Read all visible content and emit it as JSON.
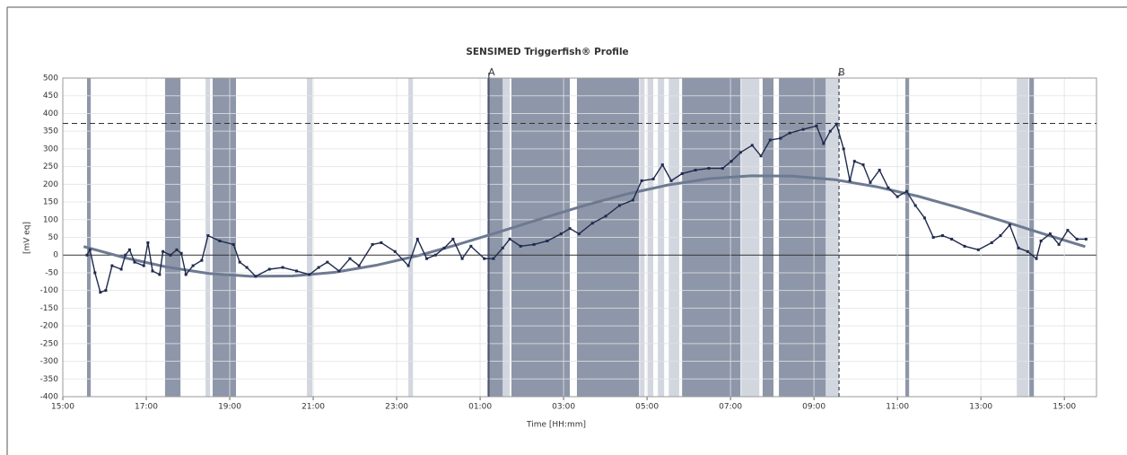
{
  "chart_data": {
    "type": "line",
    "title": "SENSIMED Triggerfish® Profile",
    "x_label": "Time [HH:mm]",
    "y_label": "[mV eq]",
    "xlim": [
      15,
      39.77
    ],
    "xticks": [
      {
        "value": 15,
        "label": "15:00"
      },
      {
        "value": 17,
        "label": "17:00"
      },
      {
        "value": 19,
        "label": "19:00"
      },
      {
        "value": 21,
        "label": "21:00"
      },
      {
        "value": 23,
        "label": "23:00"
      },
      {
        "value": 25,
        "label": "01:00"
      },
      {
        "value": 27,
        "label": "03:00"
      },
      {
        "value": 29,
        "label": "05:00"
      },
      {
        "value": 31,
        "label": "07:00"
      },
      {
        "value": 33,
        "label": "09:00"
      },
      {
        "value": 35,
        "label": "11:00"
      },
      {
        "value": 37,
        "label": "13:00"
      },
      {
        "value": 39,
        "label": "15:00"
      }
    ],
    "ylim": [
      -400,
      500
    ],
    "yticks": [
      -400,
      -350,
      -300,
      -250,
      -200,
      -150,
      -100,
      -50,
      0,
      50,
      100,
      150,
      200,
      250,
      300,
      350,
      400,
      450,
      500
    ],
    "grid": true,
    "series": [
      {
        "color": "#1f2a4d",
        "x": [
          15.58,
          15.65,
          15.77,
          15.9,
          16.03,
          16.18,
          16.4,
          16.5,
          16.6,
          16.72,
          16.94,
          17.04,
          17.15,
          17.32,
          17.4,
          17.58,
          17.73,
          17.84,
          17.95,
          18.12,
          18.33,
          18.48,
          18.76,
          19.09,
          19.24,
          19.41,
          19.62,
          19.95,
          20.27,
          20.6,
          20.91,
          21.13,
          21.34,
          21.62,
          21.88,
          22.1,
          22.42,
          22.63,
          22.96,
          23.28,
          23.5,
          23.72,
          23.93,
          24.14,
          24.35,
          24.57,
          24.78,
          25.1,
          25.32,
          25.54,
          25.71,
          25.97,
          26.29,
          26.61,
          26.94,
          27.15,
          27.37,
          27.69,
          28.01,
          28.34,
          28.66,
          28.87,
          29.15,
          29.37,
          29.58,
          29.84,
          30.16,
          30.48,
          30.81,
          31.02,
          31.24,
          31.52,
          31.73,
          31.95,
          32.2,
          32.42,
          32.74,
          33.06,
          33.23,
          33.39,
          33.54,
          33.71,
          33.86,
          33.97,
          34.18,
          34.35,
          34.57,
          34.78,
          35.0,
          35.22,
          35.43,
          35.65,
          35.86,
          36.08,
          36.3,
          36.61,
          36.94,
          37.26,
          37.47,
          37.69,
          37.9,
          38.12,
          38.33,
          38.44,
          38.66,
          38.87,
          39.08,
          39.3,
          39.52
        ],
        "values": [
          0,
          15,
          -50,
          -105,
          -100,
          -30,
          -40,
          0,
          15,
          -20,
          -30,
          35,
          -45,
          -55,
          10,
          0,
          15,
          5,
          -55,
          -30,
          -15,
          55,
          40,
          30,
          -20,
          -35,
          -60,
          -40,
          -35,
          -45,
          -55,
          -35,
          -20,
          -45,
          -10,
          -30,
          30,
          35,
          10,
          -30,
          45,
          -10,
          0,
          20,
          45,
          -10,
          25,
          -10,
          -10,
          20,
          45,
          25,
          30,
          40,
          60,
          75,
          60,
          90,
          110,
          140,
          155,
          210,
          215,
          255,
          210,
          230,
          240,
          245,
          245,
          265,
          290,
          310,
          280,
          325,
          330,
          345,
          355,
          365,
          315,
          350,
          370,
          300,
          210,
          265,
          255,
          205,
          240,
          190,
          165,
          180,
          140,
          105,
          50,
          55,
          45,
          25,
          15,
          35,
          55,
          85,
          20,
          10,
          -10,
          40,
          60,
          30,
          70,
          45,
          45
        ]
      },
      {
        "color": "#6e7a92",
        "x": [
          15.5,
          16.5,
          17.5,
          18.5,
          19.5,
          20.5,
          21.5,
          22.5,
          23.5,
          24.5,
          25.5,
          26.5,
          27.5,
          28.5,
          29.5,
          30.5,
          31.5,
          32.5,
          33.5,
          34.5,
          35.5,
          36.5,
          37.5,
          38.5,
          39.5
        ],
        "values": [
          24,
          -8,
          -34,
          -52,
          -60,
          -59,
          -49,
          -29,
          -2,
          31,
          67,
          104,
          140,
          172,
          198,
          216,
          224,
          223,
          213,
          193,
          166,
          133,
          97,
          60,
          24
        ]
      }
    ],
    "bands_dark_color": "#8e97a9",
    "bands_dark": [
      [
        15.58,
        15.67
      ],
      [
        17.45,
        17.82
      ],
      [
        18.59,
        19.15
      ],
      [
        25.17,
        25.54
      ],
      [
        25.75,
        27.15
      ],
      [
        27.32,
        28.81
      ],
      [
        29.84,
        31.24
      ],
      [
        31.77,
        32.03
      ],
      [
        32.16,
        33.28
      ],
      [
        35.19,
        35.28
      ],
      [
        38.16,
        38.27
      ]
    ],
    "bands_light_color": "#d2d7df",
    "bands_light": [
      [
        18.42,
        18.53
      ],
      [
        20.85,
        20.98
      ],
      [
        23.28,
        23.39
      ],
      [
        25.54,
        25.71
      ],
      [
        28.83,
        28.94
      ],
      [
        29.02,
        29.15
      ],
      [
        29.26,
        29.41
      ],
      [
        29.52,
        29.77
      ],
      [
        31.26,
        31.69
      ],
      [
        33.28,
        33.6
      ],
      [
        37.86,
        38.14
      ]
    ],
    "threshold": 372,
    "markers": [
      {
        "label": "A",
        "x": 25.21
      },
      {
        "label": "B",
        "x": 33.6
      }
    ]
  }
}
